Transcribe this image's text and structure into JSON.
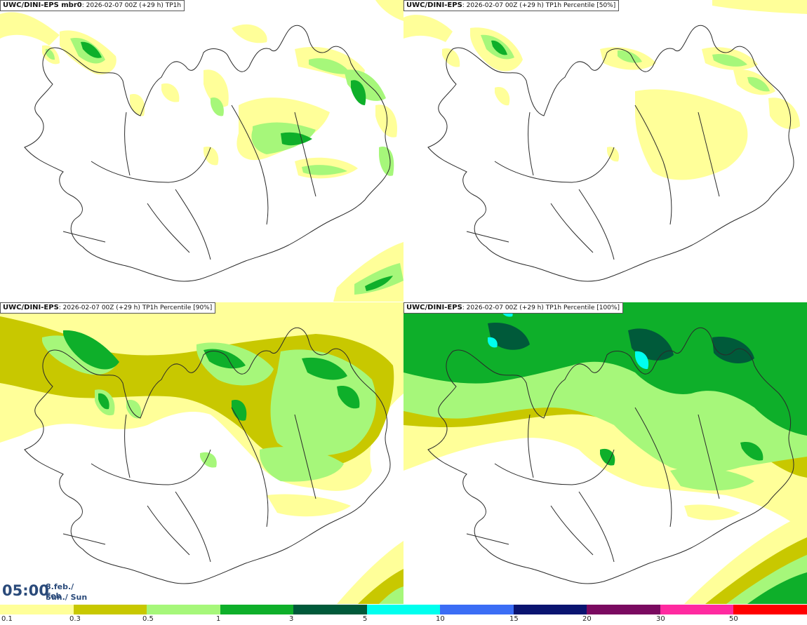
{
  "panels": [
    {
      "model": "UWC/DINI-EPS mbr0",
      "run": ": 2026-02-07 00Z (+29 h) TP1h"
    },
    {
      "model": "UWC/DINI-EPS",
      "run": ": 2026-02-07 00Z (+29 h) TP1h Percentile [50%]"
    },
    {
      "model": "UWC/DINI-EPS",
      "run": ": 2026-02-07 00Z (+29 h) TP1h Percentile [90%]"
    },
    {
      "model": "UWC/DINI-EPS",
      "run": ": 2026-02-07 00Z (+29 h) TP1h Percentile [100%]"
    }
  ],
  "timebox": {
    "time": "05:00",
    "date_line1": "8.feb./ Feb",
    "date_line2": "Sun./ Sun"
  },
  "legend": {
    "ticks": [
      "0.1",
      "0.3",
      "0.5",
      "1",
      "3",
      "5",
      "10",
      "15",
      "20",
      "30",
      "50"
    ],
    "colors": [
      "#ffff99",
      "#c8c800",
      "#a6f77a",
      "#0eaf2a",
      "#005a3a",
      "#00ffee",
      "#3b6df5",
      "#0a1470",
      "#7a0a60",
      "#ff2aa0",
      "#ff0000"
    ]
  },
  "colors": {
    "coast": "#2a2a2a",
    "background": "#ffffff"
  }
}
